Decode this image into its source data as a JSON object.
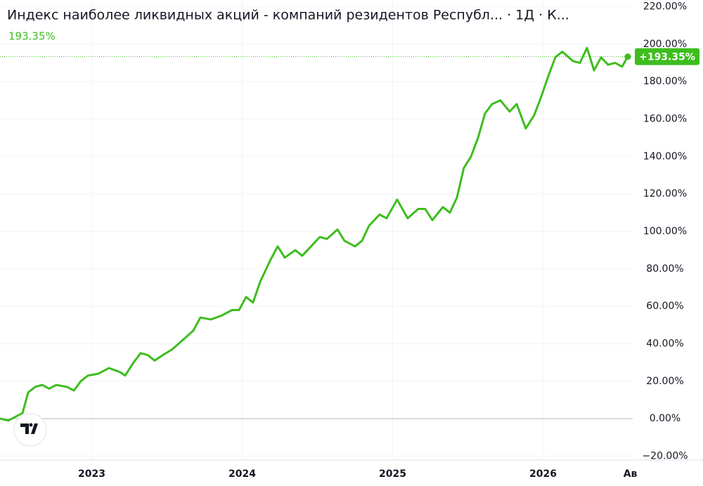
{
  "chart_data": {
    "type": "line",
    "title": "Индекс наиболее ликвидных акций - компаний резидентов Республ...  · 1Д · К...",
    "annotations": [
      "193.35%",
      "+193.35%"
    ],
    "color": "#3ebd1e",
    "x": [
      2022.39,
      2022.446,
      2022.493,
      2022.54,
      2022.577,
      2022.624,
      2022.67,
      2022.717,
      2022.764,
      2022.834,
      2022.881,
      2022.927,
      2022.974,
      2023.044,
      2023.114,
      2023.184,
      2023.222,
      2023.278,
      2023.325,
      2023.371,
      2023.418,
      2023.474,
      2023.535,
      2023.605,
      2023.675,
      2023.722,
      2023.792,
      2023.862,
      2023.932,
      2023.979,
      2024.026,
      2024.072,
      2024.119,
      2024.189,
      2024.236,
      2024.283,
      2024.353,
      2024.399,
      2024.469,
      2024.516,
      2024.563,
      2024.633,
      2024.68,
      2024.75,
      2024.797,
      2024.843,
      2024.913,
      2024.96,
      2025.03,
      2025.1,
      2025.17,
      2025.217,
      2025.264,
      2025.334,
      2025.381,
      2025.427,
      2025.474,
      2025.521,
      2025.568,
      2025.614,
      2025.661,
      2025.717,
      2025.778,
      2025.825,
      2025.885,
      2025.941,
      2025.988,
      2026.035,
      2026.082,
      2026.128,
      2026.198,
      2026.245,
      2026.292,
      2026.339,
      2026.386,
      2026.432,
      2026.479,
      2026.526,
      2026.563
    ],
    "values": [
      0,
      -1,
      1,
      3,
      14,
      17,
      18,
      16,
      18,
      17,
      15,
      20,
      23,
      24,
      27,
      25,
      23,
      30,
      35,
      34,
      31,
      34,
      37,
      42,
      47,
      54,
      53,
      55,
      58,
      58,
      65,
      62,
      73,
      85,
      92,
      86,
      90,
      87,
      93,
      97,
      96,
      101,
      95,
      92,
      95,
      103,
      109,
      107,
      117,
      107,
      112,
      112,
      106,
      113,
      110,
      118,
      134,
      140,
      150,
      163,
      168,
      170,
      164,
      168,
      155,
      162,
      172,
      183,
      193,
      196,
      191,
      190,
      198,
      186,
      193,
      189,
      190,
      188,
      193.35
    ],
    "xlim": [
      2022.39,
      2026.596
    ],
    "xticks": [
      2023,
      2024,
      2025,
      2026,
      {
        "value": 2026.58,
        "label": "Ав"
      }
    ],
    "ylim": [
      -22.1,
      223.6
    ],
    "yticks": [
      {
        "value": -20,
        "label": "−20.00%"
      },
      {
        "value": 0,
        "label": "0.00%"
      },
      {
        "value": 20,
        "label": "20.00%"
      },
      {
        "value": 40,
        "label": "40.00%"
      },
      {
        "value": 60,
        "label": "60.00%"
      },
      {
        "value": 80,
        "label": "80.00%"
      },
      {
        "value": 100,
        "label": "100.00%"
      },
      {
        "value": 120,
        "label": "120.00%"
      },
      {
        "value": 140,
        "label": "140.00%"
      },
      {
        "value": 160,
        "label": "160.00%"
      },
      {
        "value": 180,
        "label": "180.00%"
      },
      {
        "value": 200,
        "label": "200.00%"
      },
      {
        "value": 220,
        "label": "220.00%"
      }
    ],
    "grid": true
  }
}
